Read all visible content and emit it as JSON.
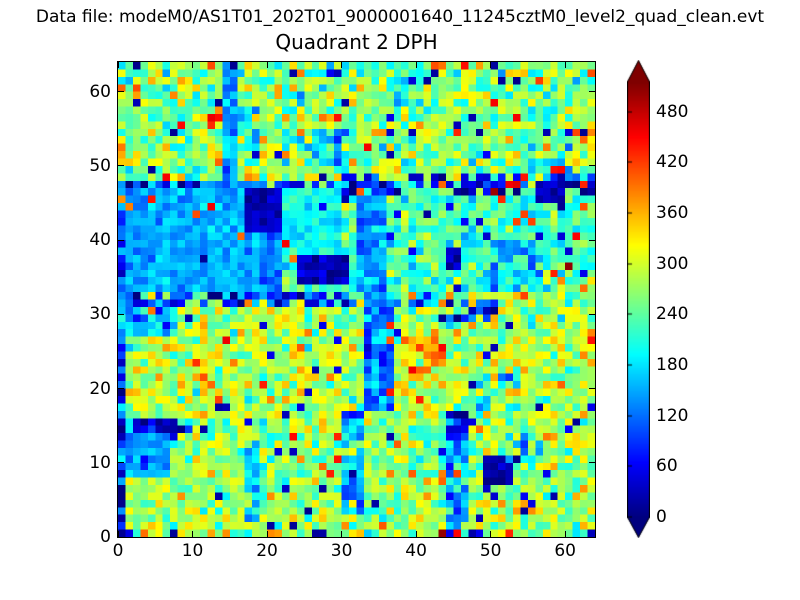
{
  "chart_data": {
    "type": "heatmap",
    "suptitle": "Data file: modeM0/AS1T01_202T01_9000001640_11245cztM0_level2_quad_clean.evt",
    "title": "Quadrant 2 DPH",
    "background": "#ffffff",
    "frame_color": "#000000",
    "colormap": "jet",
    "grid": {
      "cols": 64,
      "rows": 64
    },
    "xlim": [
      0,
      64
    ],
    "ylim": [
      0,
      64
    ],
    "xticks": [
      0,
      10,
      20,
      30,
      40,
      50,
      60
    ],
    "yticks": [
      0,
      10,
      20,
      30,
      40,
      50,
      60
    ],
    "grid_lines": false,
    "colorbar": {
      "vmin": 0,
      "vmax": 515,
      "ticks": [
        0,
        60,
        120,
        180,
        240,
        300,
        360,
        420,
        480
      ],
      "extend": "both"
    },
    "field": {
      "comment": "64x64 DPH counts field reconstructed from screenshot: banded speckle noise with structured blue/navy regions; regions painted in order, then sparse outliers, then exact spot cells [x,y,value].",
      "seed": 7,
      "regions": [
        {
          "x": [
            0,
            64
          ],
          "y": [
            48,
            64
          ],
          "mean": 262,
          "sd": 50
        },
        {
          "x": [
            0,
            64
          ],
          "y": [
            33,
            48
          ],
          "mean": 230,
          "sd": 40
        },
        {
          "x": [
            0,
            64
          ],
          "y": [
            16,
            33
          ],
          "mean": 283,
          "sd": 46
        },
        {
          "x": [
            0,
            64
          ],
          "y": [
            0,
            16
          ],
          "mean": 272,
          "sd": 44
        },
        {
          "x": [
            0,
            19
          ],
          "y": [
            33,
            48
          ],
          "mean": 152,
          "sd": 20
        },
        {
          "x": [
            19,
            22
          ],
          "y": [
            33,
            47
          ],
          "mean": 128,
          "sd": 25
        },
        {
          "x": [
            22,
            30
          ],
          "y": [
            36,
            47
          ],
          "mean": 192,
          "sd": 22
        },
        {
          "x": [
            14,
            16
          ],
          "y": [
            48,
            64
          ],
          "mean": 148,
          "sd": 30
        },
        {
          "x": [
            16,
            19
          ],
          "y": [
            52,
            58
          ],
          "mean": 185,
          "sd": 28,
          "p": 0.7
        },
        {
          "x": [
            26,
            31
          ],
          "y": [
            50,
            55
          ],
          "mean": 165,
          "sd": 32,
          "p": 0.7
        },
        {
          "x": [
            36,
            39
          ],
          "y": [
            58,
            62
          ],
          "mean": 172,
          "sd": 30,
          "p": 0.65
        },
        {
          "x": [
            55,
            61
          ],
          "y": [
            48,
            53
          ],
          "mean": 162,
          "sd": 32,
          "p": 0.6
        },
        {
          "x": [
            0,
            30
          ],
          "y": [
            47,
            48
          ],
          "mean": 75,
          "sd": 55,
          "p": 0.5
        },
        {
          "x": [
            30,
            64
          ],
          "y": [
            46,
            49
          ],
          "mean": 55,
          "sd": 45,
          "p": 0.55
        },
        {
          "x": [
            56,
            60
          ],
          "y": [
            45,
            48
          ],
          "mean": 25,
          "sd": 15
        },
        {
          "x": [
            17,
            22
          ],
          "y": [
            41,
            47
          ],
          "mean": 26,
          "sd": 16
        },
        {
          "x": [
            24,
            31
          ],
          "y": [
            34,
            38
          ],
          "mean": 30,
          "sd": 20
        },
        {
          "x": [
            32,
            36
          ],
          "y": [
            33,
            47
          ],
          "mean": 135,
          "sd": 32
        },
        {
          "x": [
            50,
            57
          ],
          "y": [
            33,
            40
          ],
          "mean": 150,
          "sd": 38,
          "p": 0.6
        },
        {
          "x": [
            44,
            46
          ],
          "y": [
            36,
            39
          ],
          "mean": 40,
          "sd": 28,
          "p": 0.8
        },
        {
          "x": [
            0,
            36
          ],
          "y": [
            31,
            33
          ],
          "mean": 75,
          "sd": 50,
          "p": 0.65
        },
        {
          "x": [
            36,
            44
          ],
          "y": [
            31,
            33
          ],
          "mean": 140,
          "sd": 42,
          "p": 0.55
        },
        {
          "x": [
            44,
            51
          ],
          "y": [
            29,
            32
          ],
          "mean": 95,
          "sd": 50,
          "p": 0.7
        },
        {
          "x": [
            33,
            37
          ],
          "y": [
            17,
            33
          ],
          "mean": 130,
          "sd": 38
        },
        {
          "x": [
            30,
            33
          ],
          "y": [
            3,
            17
          ],
          "mean": 140,
          "sd": 38,
          "p": 0.85
        },
        {
          "x": [
            17,
            19
          ],
          "y": [
            2,
            13
          ],
          "mean": 160,
          "sd": 38,
          "p": 0.75
        },
        {
          "x": [
            44,
            47
          ],
          "y": [
            0,
            17
          ],
          "mean": 135,
          "sd": 42,
          "p": 0.8
        },
        {
          "x": [
            44,
            48
          ],
          "y": [
            13,
            17
          ],
          "mean": 50,
          "sd": 35,
          "p": 0.7
        },
        {
          "x": [
            49,
            53
          ],
          "y": [
            7,
            11
          ],
          "mean": 25,
          "sd": 15
        },
        {
          "x": [
            52,
            57
          ],
          "y": [
            10,
            14
          ],
          "mean": 152,
          "sd": 38,
          "p": 0.55
        },
        {
          "x": [
            1,
            7
          ],
          "y": [
            8,
            15
          ],
          "mean": 150,
          "sd": 28
        },
        {
          "x": [
            2,
            10
          ],
          "y": [
            14,
            16
          ],
          "mean": 40,
          "sd": 28,
          "p": 0.8
        },
        {
          "x": [
            0,
            1
          ],
          "y": [
            0,
            33
          ],
          "mean": 85,
          "sd": 65
        },
        {
          "x": [
            0,
            1
          ],
          "y": [
            33,
            48
          ],
          "mean": 120,
          "sd": 55,
          "p": 0.7
        },
        {
          "x": [
            0,
            8
          ],
          "y": [
            27,
            32
          ],
          "mean": 150,
          "sd": 42,
          "p": 0.7
        },
        {
          "x": [
            38,
            44
          ],
          "y": [
            20,
            28
          ],
          "mean": 330,
          "sd": 52,
          "p": 0.75
        },
        {
          "x": [
            48,
            54
          ],
          "y": [
            17,
            22
          ],
          "mean": 172,
          "sd": 42,
          "p": 0.55
        }
      ],
      "outliers": {
        "low_frac": 0.025,
        "low": [
          5,
          65
        ],
        "high_frac": 0.02,
        "high": [
          340,
          460
        ]
      },
      "spots": [
        [
          12,
          56,
          460
        ],
        [
          12,
          55,
          430
        ],
        [
          13,
          56,
          445
        ],
        [
          0,
          60,
          400
        ],
        [
          0,
          52,
          390
        ],
        [
          2,
          58,
          28
        ],
        [
          42,
          63,
          410
        ],
        [
          56,
          61,
          420
        ],
        [
          62,
          53,
          400
        ],
        [
          47,
          56,
          22
        ],
        [
          23,
          62,
          18
        ],
        [
          41,
          61,
          14
        ],
        [
          42,
          62,
          16
        ],
        [
          15,
          63,
          10
        ],
        [
          30,
          58,
          18
        ],
        [
          50,
          63,
          15
        ],
        [
          52,
          47,
          455
        ],
        [
          53,
          47,
          465
        ],
        [
          54,
          48,
          440
        ],
        [
          50,
          46,
          500
        ],
        [
          51,
          45,
          430
        ],
        [
          43,
          47,
          400
        ],
        [
          60,
          36,
          505
        ],
        [
          61,
          40,
          450
        ],
        [
          62,
          44,
          410
        ],
        [
          62,
          33,
          395
        ],
        [
          59,
          34,
          380
        ],
        [
          39,
          22,
          455
        ],
        [
          36,
          19,
          440
        ],
        [
          40,
          25,
          420
        ],
        [
          42,
          26,
          400
        ],
        [
          41,
          24,
          385
        ],
        [
          36,
          28,
          430
        ],
        [
          9,
          29,
          24
        ],
        [
          21,
          31,
          14
        ],
        [
          26,
          22,
          20
        ],
        [
          47,
          20,
          18
        ],
        [
          52,
          28,
          22
        ],
        [
          56,
          17,
          14
        ],
        [
          44,
          31,
          12
        ],
        [
          36,
          13,
          20
        ],
        [
          13,
          5,
          18
        ],
        [
          20,
          1,
          15
        ],
        [
          58,
          5,
          20
        ],
        [
          61,
          15,
          12
        ],
        [
          27,
          6,
          15
        ],
        [
          3,
          0,
          395
        ],
        [
          20,
          0,
          380
        ],
        [
          21,
          0,
          370
        ],
        [
          43,
          0,
          505
        ],
        [
          45,
          0,
          450
        ],
        [
          44,
          0,
          55
        ],
        [
          47,
          0,
          20
        ],
        [
          26,
          0,
          14
        ],
        [
          27,
          0,
          18
        ],
        [
          7,
          0,
          12
        ],
        [
          0,
          0,
          10
        ],
        [
          63,
          0,
          30
        ],
        [
          57,
          13,
          390
        ],
        [
          55,
          3,
          380
        ],
        [
          41,
          5,
          375
        ],
        [
          62,
          1,
          360
        ],
        [
          12,
          8,
          370
        ],
        [
          43,
          7,
          400
        ],
        [
          43,
          8,
          385
        ]
      ]
    }
  }
}
